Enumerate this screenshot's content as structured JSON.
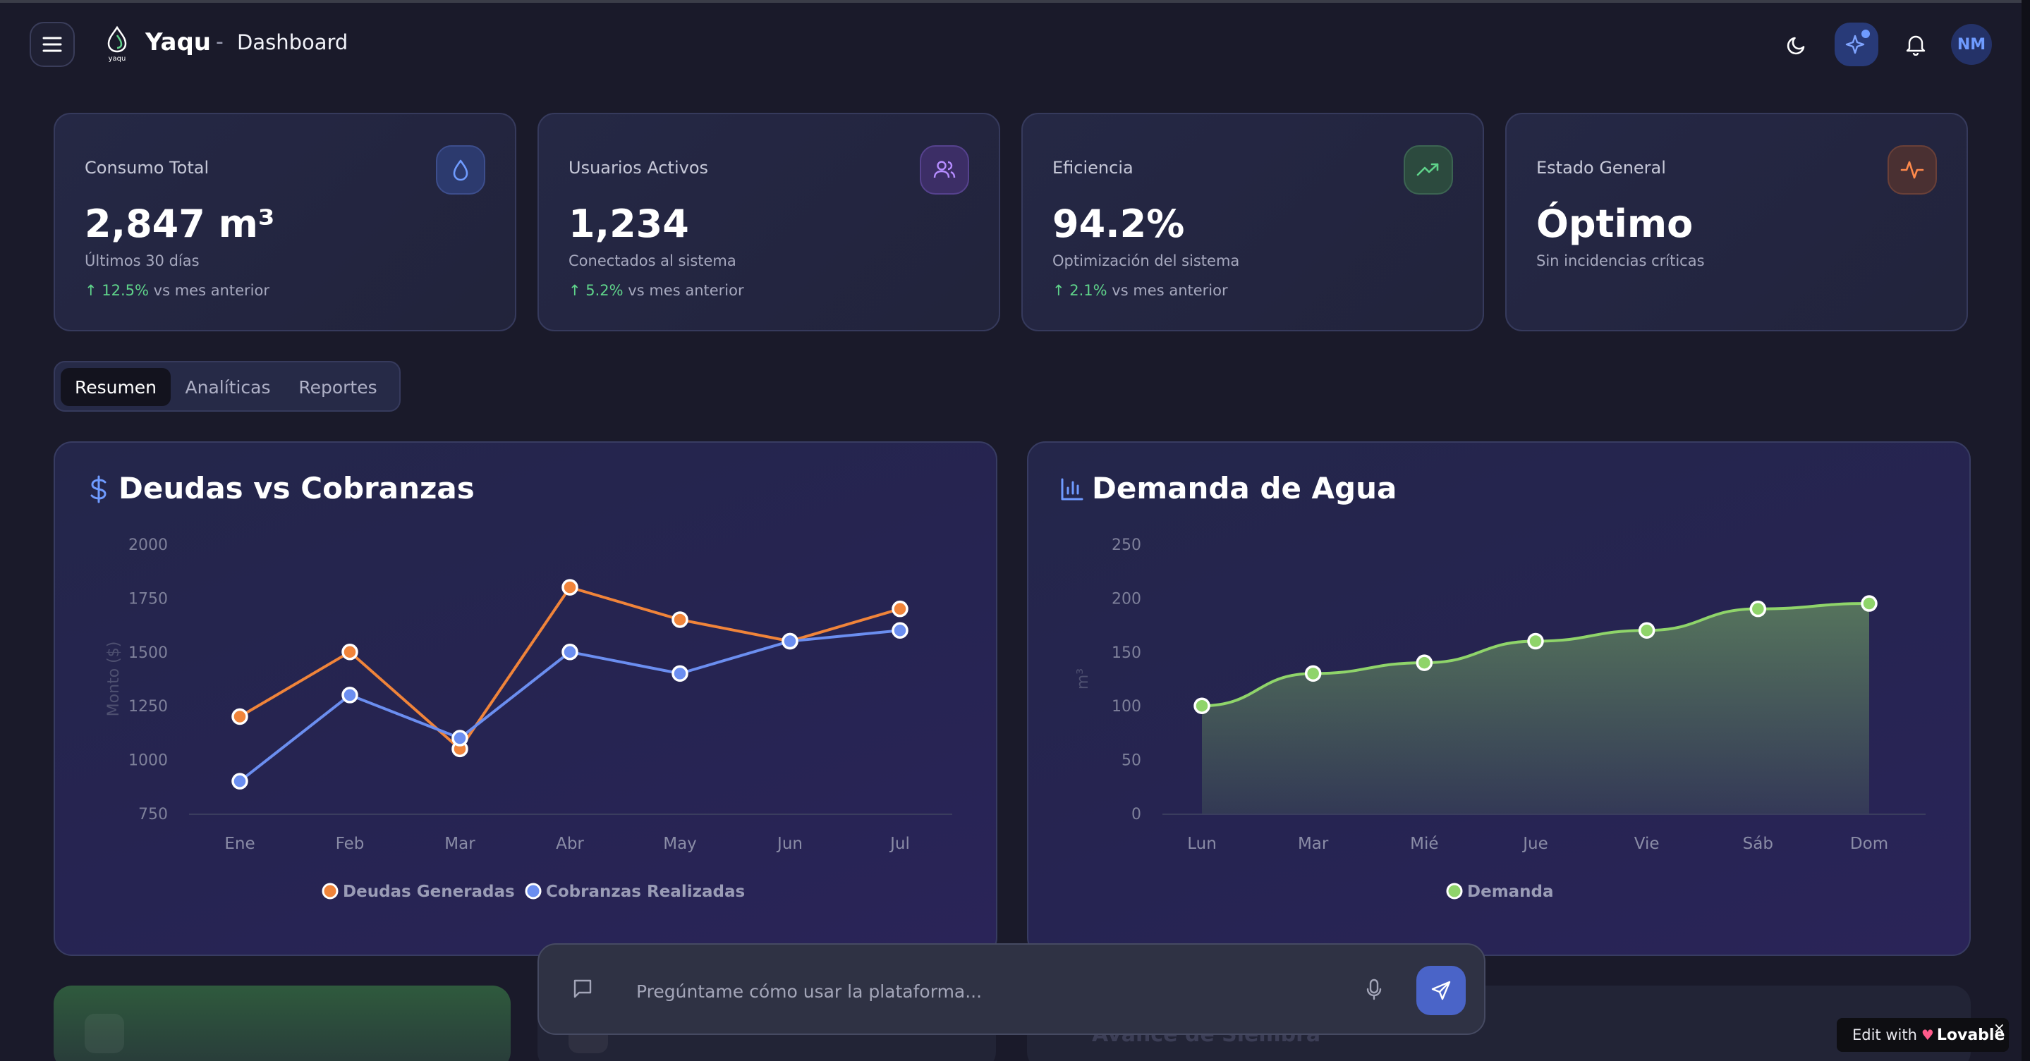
{
  "header": {
    "brand": "Yaqu",
    "logo_caption": "yaqu",
    "separator": "-",
    "page": "Dashboard",
    "avatar_initials": "NM"
  },
  "stats": [
    {
      "title": "Consumo Total",
      "value": "2,847 m³",
      "sub": "Últimos 30 días",
      "trend": "↑ 12.5%",
      "trend_suffix": " vs mes anterior",
      "icon": "droplet-icon",
      "accent": "#6f9bff"
    },
    {
      "title": "Usuarios Activos",
      "value": "1,234",
      "sub": "Conectados al sistema",
      "trend": "↑ 5.2%",
      "trend_suffix": " vs mes anterior",
      "icon": "users-icon",
      "accent": "#b58cff"
    },
    {
      "title": "Eficiencia",
      "value": "94.2%",
      "sub": "Optimización del sistema",
      "trend": "↑ 2.1%",
      "trend_suffix": " vs mes anterior",
      "icon": "trending-up-icon",
      "accent": "#5fd38a"
    },
    {
      "title": "Estado General",
      "value": "Óptimo",
      "sub": "Sin incidencias críticas",
      "icon": "activity-icon",
      "accent": "#ff8a4c"
    }
  ],
  "tabs": [
    {
      "label": "Resumen",
      "active": true
    },
    {
      "label": "Analíticas",
      "active": false
    },
    {
      "label": "Reportes",
      "active": false
    }
  ],
  "panels": {
    "debts_title": "Deudas vs Cobranzas",
    "demand_title": "Demanda de Agua"
  },
  "chart_data": [
    {
      "type": "line",
      "title": "Deudas vs Cobranzas",
      "categories": [
        "Ene",
        "Feb",
        "Mar",
        "Abr",
        "May",
        "Jun",
        "Jul"
      ],
      "series": [
        {
          "name": "Deudas Generadas",
          "values": [
            1200,
            1500,
            1050,
            1800,
            1650,
            1550,
            1700
          ],
          "color": "#f0843a"
        },
        {
          "name": "Cobranzas Realizadas",
          "values": [
            900,
            1300,
            1100,
            1500,
            1400,
            1550,
            1600
          ],
          "color": "#6b8ef0"
        }
      ],
      "yticks": [
        750,
        1000,
        1250,
        1500,
        1750,
        2000
      ],
      "ylim": [
        750,
        2000
      ],
      "xlabel": "",
      "ylabel": "Monto ($)",
      "legend": "bottom-center"
    },
    {
      "type": "area",
      "title": "Demanda de Agua",
      "categories": [
        "Lun",
        "Mar",
        "Mié",
        "Jue",
        "Vie",
        "Sáb",
        "Dom"
      ],
      "series": [
        {
          "name": "Demanda",
          "values": [
            100,
            130,
            140,
            160,
            170,
            190,
            195
          ],
          "color": "#8fd46a"
        }
      ],
      "yticks": [
        0,
        50,
        100,
        150,
        200,
        250
      ],
      "ylim": [
        0,
        250
      ],
      "xlabel": "",
      "ylabel": "m³",
      "legend": "bottom-center"
    }
  ],
  "bottom": {
    "partial_title": "Avance de Siembra"
  },
  "chat": {
    "placeholder": "Pregúntame cómo usar la plataforma..."
  },
  "badge": {
    "prefix": "Edit with",
    "brand": "Lovable",
    "close": "×"
  }
}
